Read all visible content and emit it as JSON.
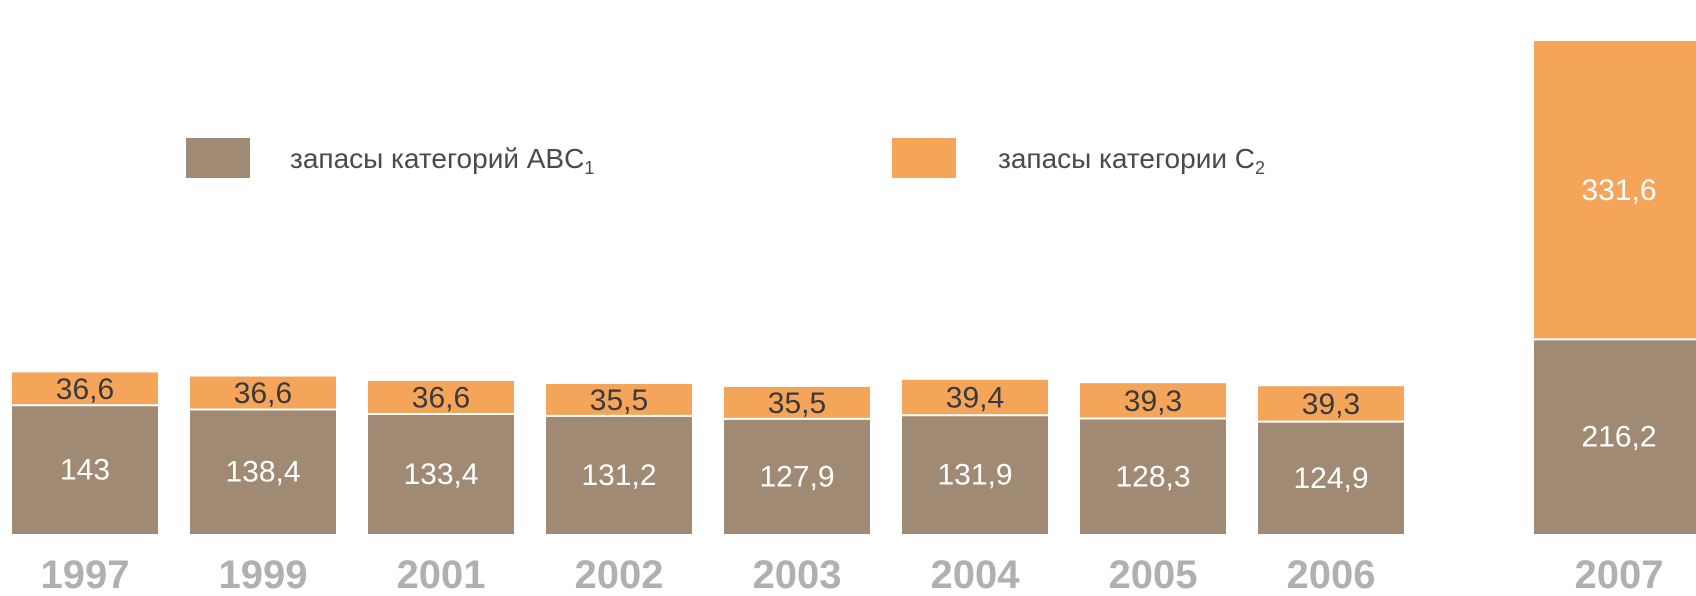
{
  "chart_data": {
    "type": "bar",
    "stacked": true,
    "categories": [
      "1997",
      "1999",
      "2001",
      "2002",
      "2003",
      "2004",
      "2005",
      "2006",
      "2007"
    ],
    "series": [
      {
        "name": "запасы категорий ABC",
        "name_subscript": "1",
        "color": "#a08a73",
        "values": [
          143,
          138.4,
          133.4,
          131.2,
          127.9,
          131.9,
          128.3,
          124.9,
          216.2
        ],
        "labels": [
          "143",
          "138,4",
          "133,4",
          "131,2",
          "127,9",
          "131,9",
          "128,3",
          "124,9",
          "216,2"
        ]
      },
      {
        "name": "запасы категории С",
        "name_subscript": "2",
        "color": "#f5a55a",
        "values": [
          36.6,
          36.6,
          36.6,
          35.5,
          35.5,
          39.4,
          39.3,
          39.3,
          331.6
        ],
        "labels": [
          "36,6",
          "36,6",
          "36,6",
          "35,5",
          "35,5",
          "39,4",
          "39,3",
          "39,3",
          "331,6"
        ]
      }
    ],
    "title": "",
    "xlabel": "",
    "ylabel": "",
    "grid": false,
    "legend_position": "top"
  }
}
